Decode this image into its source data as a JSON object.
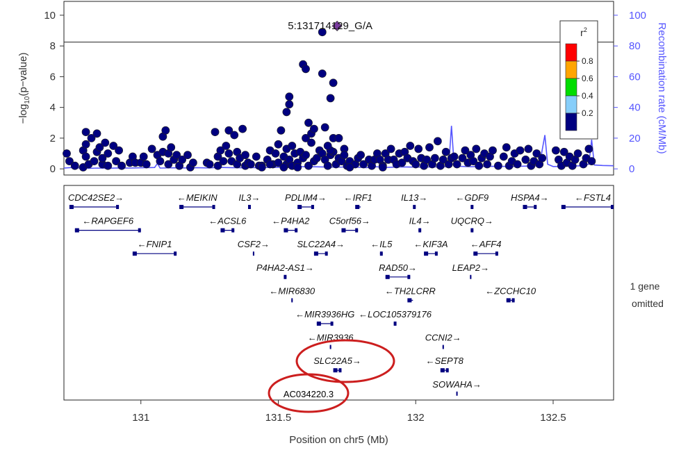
{
  "chart_data": {
    "type": "scatter",
    "title": "",
    "lead_snp_label": "5:131714129_G/A",
    "xlabel": "Position on chr5 (Mb)",
    "ylabel_left": "-log10(p-value)",
    "ylabel_right": "Recombination rate (cM/Mb)",
    "xlim": [
      130.72,
      132.72
    ],
    "ylim": [
      -0.4,
      10.9
    ],
    "ylim_right": [
      -4,
      109
    ],
    "xticks": [
      131,
      131.5,
      132,
      132.5
    ],
    "xtick_labels": [
      "131",
      "131.5",
      "132",
      "132.5"
    ],
    "yticks_left": [
      0,
      2,
      4,
      6,
      8,
      10
    ],
    "yticks_right": [
      0,
      20,
      40,
      60,
      80,
      100
    ],
    "significance_line": 8.25,
    "legend": {
      "title": "r²",
      "placement": "top-right",
      "labels": [
        "0.8",
        "0.6",
        "0.4",
        "0.2"
      ],
      "colors": [
        "#ff0000",
        "#ffa500",
        "#00dd00",
        "#87cefa",
        "#000080"
      ]
    },
    "lead_snp": {
      "x": 131.714,
      "y": 9.3,
      "color": "#7b3ca0"
    },
    "point_color": "#000080",
    "recomb_color": "#5555ff",
    "points": [
      [
        130.73,
        1.0
      ],
      [
        130.74,
        0.5
      ],
      [
        130.76,
        0.2
      ],
      [
        130.79,
        0.1
      ],
      [
        130.79,
        1.2
      ],
      [
        130.8,
        2.4
      ],
      [
        130.8,
        1.6
      ],
      [
        130.8,
        0.8
      ],
      [
        130.81,
        0.3
      ],
      [
        130.82,
        2.0
      ],
      [
        130.83,
        0.5
      ],
      [
        130.84,
        1.1
      ],
      [
        130.84,
        2.3
      ],
      [
        130.85,
        1.4
      ],
      [
        130.86,
        0.3
      ],
      [
        130.86,
        0.7
      ],
      [
        130.87,
        1.7
      ],
      [
        130.88,
        1.0
      ],
      [
        130.88,
        0.2
      ],
      [
        130.9,
        1.5
      ],
      [
        130.91,
        0.5
      ],
      [
        130.92,
        1.2
      ],
      [
        130.93,
        0.2
      ],
      [
        130.96,
        0.4
      ],
      [
        130.97,
        0.8
      ],
      [
        130.98,
        0.4
      ],
      [
        131.0,
        0.4
      ],
      [
        131.01,
        0.8
      ],
      [
        131.02,
        0.3
      ],
      [
        131.04,
        1.3
      ],
      [
        131.06,
        0.9
      ],
      [
        131.07,
        0.5
      ],
      [
        131.08,
        2.1
      ],
      [
        131.08,
        1.1
      ],
      [
        131.09,
        2.5
      ],
      [
        131.1,
        1.0
      ],
      [
        131.1,
        0.3
      ],
      [
        131.11,
        1.4
      ],
      [
        131.12,
        0.6
      ],
      [
        131.13,
        0.9
      ],
      [
        131.14,
        0.2
      ],
      [
        131.15,
        0.6
      ],
      [
        131.17,
        0.9
      ],
      [
        131.18,
        0.1
      ],
      [
        131.19,
        0.4
      ],
      [
        131.24,
        0.4
      ],
      [
        131.25,
        0.3
      ],
      [
        131.27,
        2.4
      ],
      [
        131.28,
        0.8
      ],
      [
        131.28,
        0.2
      ],
      [
        131.29,
        1.2
      ],
      [
        131.3,
        0.5
      ],
      [
        131.31,
        1.5
      ],
      [
        131.32,
        2.5
      ],
      [
        131.32,
        1.0
      ],
      [
        131.33,
        0.5
      ],
      [
        131.34,
        2.2
      ],
      [
        131.35,
        1.1
      ],
      [
        131.35,
        0.3
      ],
      [
        131.36,
        0.7
      ],
      [
        131.37,
        2.6
      ],
      [
        131.38,
        0.9
      ],
      [
        131.38,
        0.2
      ],
      [
        131.39,
        0.4
      ],
      [
        131.4,
        0.3
      ],
      [
        131.42,
        0.8
      ],
      [
        131.43,
        0.2
      ],
      [
        131.44,
        0.2
      ],
      [
        131.46,
        0.6
      ],
      [
        131.47,
        1.2
      ],
      [
        131.48,
        0.3
      ],
      [
        131.49,
        1.0
      ],
      [
        131.5,
        1.6
      ],
      [
        131.5,
        0.4
      ],
      [
        131.51,
        2.5
      ],
      [
        131.52,
        0.8
      ],
      [
        131.53,
        0.3
      ],
      [
        131.53,
        1.3
      ],
      [
        131.54,
        0.6
      ],
      [
        131.55,
        0.2
      ],
      [
        131.56,
        1.0
      ],
      [
        131.57,
        0.4
      ],
      [
        131.58,
        1.1
      ],
      [
        131.59,
        0.7
      ],
      [
        131.6,
        2.0
      ],
      [
        131.6,
        0.9
      ],
      [
        131.61,
        0.2
      ],
      [
        131.62,
        1.7
      ],
      [
        131.63,
        0.5
      ],
      [
        131.64,
        0.7
      ],
      [
        131.65,
        1.2
      ],
      [
        131.66,
        1.0
      ],
      [
        131.67,
        0.6
      ],
      [
        131.68,
        0.2
      ],
      [
        131.69,
        0.9
      ],
      [
        131.7,
        1.1
      ],
      [
        131.71,
        0.3
      ],
      [
        131.72,
        0.7
      ],
      [
        131.73,
        0.5
      ],
      [
        131.74,
        1.3
      ],
      [
        131.75,
        0.2
      ],
      [
        131.76,
        0.5
      ],
      [
        131.78,
        0.3
      ],
      [
        131.79,
        0.7
      ],
      [
        131.8,
        0.9
      ],
      [
        131.81,
        0.3
      ],
      [
        131.83,
        0.6
      ],
      [
        131.84,
        0.2
      ],
      [
        131.85,
        0.6
      ],
      [
        131.86,
        1.0
      ],
      [
        131.87,
        0.6
      ],
      [
        131.88,
        0.2
      ],
      [
        131.89,
        1.0
      ],
      [
        131.9,
        0.6
      ],
      [
        131.91,
        1.3
      ],
      [
        131.92,
        0.6
      ],
      [
        131.93,
        0.3
      ],
      [
        131.94,
        1.0
      ],
      [
        131.95,
        0.4
      ],
      [
        131.96,
        1.1
      ],
      [
        131.97,
        0.7
      ],
      [
        131.98,
        1.5
      ],
      [
        131.99,
        0.5
      ],
      [
        132.0,
        0.3
      ],
      [
        132.01,
        1.3
      ],
      [
        132.02,
        0.7
      ],
      [
        132.03,
        0.2
      ],
      [
        132.04,
        0.6
      ],
      [
        132.05,
        1.4
      ],
      [
        132.06,
        0.3
      ],
      [
        132.07,
        0.7
      ],
      [
        132.08,
        1.8
      ],
      [
        132.09,
        0.2
      ],
      [
        132.1,
        0.6
      ],
      [
        132.11,
        1.1
      ],
      [
        132.12,
        0.3
      ],
      [
        132.13,
        0.7
      ],
      [
        132.14,
        0.8
      ],
      [
        132.15,
        0.3
      ],
      [
        132.17,
        0.7
      ],
      [
        132.18,
        1.2
      ],
      [
        132.19,
        0.4
      ],
      [
        132.2,
        0.9
      ],
      [
        132.21,
        0.5
      ],
      [
        132.22,
        1.3
      ],
      [
        132.23,
        0.2
      ],
      [
        132.24,
        0.7
      ],
      [
        132.25,
        1.0
      ],
      [
        132.26,
        0.3
      ],
      [
        132.27,
        0.8
      ],
      [
        132.28,
        1.2
      ],
      [
        132.3,
        0.2
      ],
      [
        132.32,
        0.8
      ],
      [
        132.33,
        1.4
      ],
      [
        132.34,
        0.2
      ],
      [
        132.35,
        0.5
      ],
      [
        132.36,
        1.0
      ],
      [
        132.37,
        0.3
      ],
      [
        132.38,
        1.2
      ],
      [
        132.4,
        0.6
      ],
      [
        132.41,
        1.3
      ],
      [
        132.42,
        0.2
      ],
      [
        132.43,
        0.5
      ],
      [
        132.44,
        1.0
      ],
      [
        132.45,
        0.3
      ],
      [
        132.46,
        0.7
      ],
      [
        132.51,
        1.2
      ],
      [
        132.52,
        0.6
      ],
      [
        132.53,
        0.2
      ],
      [
        132.54,
        1.1
      ],
      [
        132.55,
        0.4
      ],
      [
        132.56,
        0.8
      ],
      [
        132.57,
        0.2
      ],
      [
        132.58,
        0.6
      ],
      [
        132.59,
        1.0
      ],
      [
        132.61,
        0.3
      ],
      [
        132.62,
        0.7
      ],
      [
        132.63,
        1.3
      ],
      [
        132.64,
        0.5
      ],
      [
        131.53,
        3.7
      ],
      [
        131.54,
        4.7
      ],
      [
        131.54,
        4.2
      ],
      [
        131.55,
        1.5
      ],
      [
        131.59,
        6.8
      ],
      [
        131.6,
        6.5
      ],
      [
        131.61,
        3.0
      ],
      [
        131.62,
        2.3
      ],
      [
        131.63,
        2.6
      ],
      [
        131.66,
        8.9
      ],
      [
        131.66,
        6.2
      ],
      [
        131.69,
        4.6
      ],
      [
        131.7,
        5.6
      ],
      [
        131.7,
        2.0
      ],
      [
        131.69,
        1.2
      ],
      [
        131.68,
        1.5
      ],
      [
        131.67,
        2.7
      ],
      [
        131.72,
        2.0
      ],
      [
        131.74,
        0.9
      ],
      [
        131.44,
        0.1
      ],
      [
        131.47,
        0.3
      ],
      [
        131.52,
        0.1
      ],
      [
        131.57,
        0.1
      ],
      [
        131.76,
        0.1
      ],
      [
        131.88,
        0.1
      ]
    ],
    "recombination": [
      [
        130.72,
        0.5
      ],
      [
        130.74,
        0.8
      ],
      [
        130.76,
        1.0
      ],
      [
        130.78,
        0.4
      ],
      [
        130.8,
        0.3
      ],
      [
        130.84,
        0.5
      ],
      [
        130.88,
        0.4
      ],
      [
        130.92,
        0.6
      ],
      [
        130.96,
        0.5
      ],
      [
        131.0,
        0.7
      ],
      [
        131.05,
        0.9
      ],
      [
        131.06,
        3.5
      ],
      [
        131.07,
        0.5
      ],
      [
        131.12,
        0.7
      ],
      [
        131.16,
        0.6
      ],
      [
        131.2,
        0.8
      ],
      [
        131.25,
        0.6
      ],
      [
        131.28,
        1.0
      ],
      [
        131.3,
        0.9
      ],
      [
        131.35,
        0.7
      ],
      [
        131.4,
        0.8
      ],
      [
        131.45,
        0.9
      ],
      [
        131.5,
        1.0
      ],
      [
        131.55,
        1.2
      ],
      [
        131.6,
        1.5
      ],
      [
        131.65,
        1.3
      ],
      [
        131.7,
        1.1
      ],
      [
        131.75,
        1.2
      ],
      [
        131.78,
        4.5
      ],
      [
        131.79,
        1.0
      ],
      [
        131.82,
        0.8
      ],
      [
        131.85,
        1.4
      ],
      [
        131.9,
        1.0
      ],
      [
        131.95,
        1.3
      ],
      [
        132.0,
        1.1
      ],
      [
        132.05,
        1.2
      ],
      [
        132.1,
        1.3
      ],
      [
        132.12,
        1.5
      ],
      [
        132.13,
        28.0
      ],
      [
        132.14,
        1.8
      ],
      [
        132.2,
        1.4
      ],
      [
        132.25,
        1.6
      ],
      [
        132.3,
        1.7
      ],
      [
        132.35,
        1.5
      ],
      [
        132.4,
        1.8
      ],
      [
        132.45,
        2.0
      ],
      [
        132.47,
        22.0
      ],
      [
        132.48,
        3.0
      ],
      [
        132.5,
        1.5
      ],
      [
        132.55,
        1.7
      ],
      [
        132.6,
        2.0
      ],
      [
        132.63,
        3.0
      ],
      [
        132.64,
        19.0
      ],
      [
        132.65,
        2.5
      ],
      [
        132.68,
        2.2
      ],
      [
        132.72,
        2.0
      ]
    ],
    "genes": [
      {
        "name": "CDC42SE2",
        "dir": "+",
        "start": 130.74,
        "end": 130.92,
        "row": 0
      },
      {
        "name": "MEIKIN",
        "dir": "-",
        "start": 131.14,
        "end": 131.27,
        "row": 0
      },
      {
        "name": "IL3",
        "dir": "+",
        "start": 131.39,
        "end": 131.4,
        "row": 0
      },
      {
        "name": "PDLIM4",
        "dir": "+",
        "start": 131.57,
        "end": 131.63,
        "row": 0
      },
      {
        "name": "IRF1",
        "dir": "-",
        "start": 131.78,
        "end": 131.8,
        "row": 0
      },
      {
        "name": "IL13",
        "dir": "+",
        "start": 131.99,
        "end": 132.0,
        "row": 0
      },
      {
        "name": "GDF9",
        "dir": "-",
        "start": 132.2,
        "end": 132.21,
        "row": 0
      },
      {
        "name": "HSPA4",
        "dir": "+",
        "start": 132.39,
        "end": 132.44,
        "row": 0
      },
      {
        "name": "FSTL4",
        "dir": "-",
        "start": 132.53,
        "end": 132.72,
        "row": 0
      },
      {
        "name": "RAPGEF6",
        "dir": "-",
        "start": 130.76,
        "end": 131.0,
        "row": 1
      },
      {
        "name": "ACSL6",
        "dir": "-",
        "start": 131.29,
        "end": 131.34,
        "row": 1
      },
      {
        "name": "P4HA2",
        "dir": "-",
        "start": 131.52,
        "end": 131.57,
        "row": 1
      },
      {
        "name": "C5orf56",
        "dir": "+",
        "start": 131.73,
        "end": 131.79,
        "row": 1
      },
      {
        "name": "IL4",
        "dir": "+",
        "start": 132.01,
        "end": 132.02,
        "row": 1
      },
      {
        "name": "UQCRQ",
        "dir": "+",
        "start": 132.2,
        "end": 132.21,
        "row": 1
      },
      {
        "name": "FNIP1",
        "dir": "-",
        "start": 130.97,
        "end": 131.13,
        "row": 2
      },
      {
        "name": "CSF2",
        "dir": "+",
        "start": 131.41,
        "end": 131.41,
        "row": 2
      },
      {
        "name": "SLC22A4",
        "dir": "+",
        "start": 131.63,
        "end": 131.68,
        "row": 2
      },
      {
        "name": "IL5",
        "dir": "-",
        "start": 131.87,
        "end": 131.88,
        "row": 2
      },
      {
        "name": "KIF3A",
        "dir": "-",
        "start": 132.03,
        "end": 132.08,
        "row": 2
      },
      {
        "name": "AFF4",
        "dir": "-",
        "start": 132.21,
        "end": 132.3,
        "row": 2
      },
      {
        "name": "P4HA2-AS1",
        "dir": "+",
        "start": 131.52,
        "end": 131.53,
        "row": 3
      },
      {
        "name": "RAD50",
        "dir": "+",
        "start": 131.89,
        "end": 131.98,
        "row": 3
      },
      {
        "name": "LEAP2",
        "dir": "+",
        "start": 132.2,
        "end": 132.2,
        "row": 3
      },
      {
        "name": "MIR6830",
        "dir": "-",
        "start": 131.55,
        "end": 131.55,
        "row": 4
      },
      {
        "name": "TH2LCRR",
        "dir": "-",
        "start": 131.97,
        "end": 131.99,
        "row": 4
      },
      {
        "name": "ZCCHC10",
        "dir": "-",
        "start": 132.33,
        "end": 132.36,
        "row": 4
      },
      {
        "name": "MIR3936HG",
        "dir": "-",
        "start": 131.64,
        "end": 131.7,
        "row": 5
      },
      {
        "name": "LOC105379176",
        "dir": "-",
        "start": 131.92,
        "end": 131.93,
        "row": 5
      },
      {
        "name": "MIR3936",
        "dir": "-",
        "start": 131.69,
        "end": 131.69,
        "row": 6
      },
      {
        "name": "CCNI2",
        "dir": "+",
        "start": 132.1,
        "end": 132.1,
        "row": 6
      },
      {
        "name": "SLC22A5",
        "dir": "+",
        "start": 131.7,
        "end": 131.73,
        "row": 7
      },
      {
        "name": "SEPT8",
        "dir": "-",
        "start": 132.09,
        "end": 132.12,
        "row": 7
      },
      {
        "name": "SOWAHA",
        "dir": "+",
        "start": 132.15,
        "end": 132.15,
        "row": 8
      }
    ],
    "omitted_note": [
      "1 gene",
      "omitted"
    ],
    "annotation": "AC034220.3"
  }
}
